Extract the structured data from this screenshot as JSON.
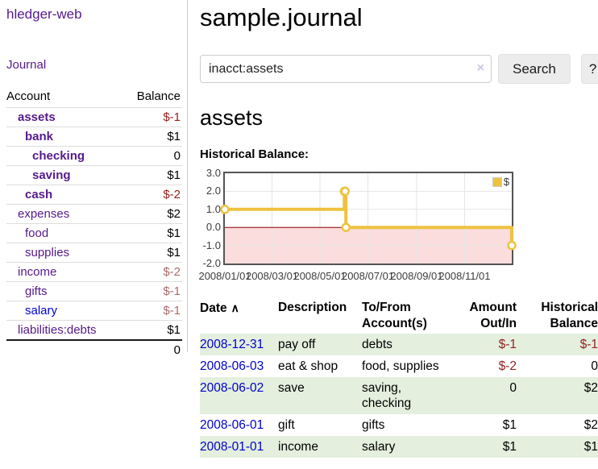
{
  "sidebar": {
    "title": "hledger-web",
    "nav": {
      "journal_label": "Journal"
    },
    "accounts_table": {
      "headers": [
        "Account",
        "Balance"
      ],
      "rows": [
        {
          "account": "assets",
          "balance": "$-1",
          "depth": 1,
          "bold": true,
          "link": "visited"
        },
        {
          "account": "bank",
          "balance": "$1",
          "depth": 2,
          "bold": true,
          "link": "visited"
        },
        {
          "account": "checking",
          "balance": "0",
          "depth": 3,
          "bold": true,
          "link": "visited"
        },
        {
          "account": "saving",
          "balance": "$1",
          "depth": 3,
          "bold": true,
          "link": "visited"
        },
        {
          "account": "cash",
          "balance": "$-2",
          "depth": 2,
          "bold": true,
          "link": "visited"
        },
        {
          "account": "expenses",
          "balance": "$2",
          "depth": 1,
          "bold": false,
          "link": "visited"
        },
        {
          "account": "food",
          "balance": "$1",
          "depth": 2,
          "bold": false,
          "link": "visited"
        },
        {
          "account": "supplies",
          "balance": "$1",
          "depth": 2,
          "bold": false,
          "link": "visited"
        },
        {
          "account": "income",
          "balance": "$-2",
          "depth": 1,
          "bold": false,
          "link": "visited"
        },
        {
          "account": "gifts",
          "balance": "$-1",
          "depth": 2,
          "bold": false,
          "link": "visited"
        },
        {
          "account": "salary",
          "balance": "$-1",
          "depth": 2,
          "bold": false,
          "link": "unvisited"
        },
        {
          "account": "liabilities:debts",
          "balance": "$1",
          "depth": 1,
          "bold": false,
          "link": "visited"
        }
      ],
      "total": "0"
    }
  },
  "header": {
    "title": "sample.journal"
  },
  "search": {
    "value": "inacct:assets",
    "clear_icon": "×",
    "button_label": "Search",
    "help_label": "?"
  },
  "account_page": {
    "title": "assets"
  },
  "chart_data": {
    "type": "line",
    "step": true,
    "title": "Historical Balance:",
    "xlabel": "",
    "ylabel": "",
    "series": [
      {
        "name": "$",
        "color": "#edc240",
        "points": [
          [
            "2008-01-01",
            1
          ],
          [
            "2008-06-01",
            2
          ],
          [
            "2008-06-02",
            2
          ],
          [
            "2008-06-03",
            0
          ],
          [
            "2008-12-31",
            -1
          ]
        ]
      }
    ],
    "x_ticks": [
      "2008/01/01",
      "2008/03/01",
      "2008/05/01",
      "2008/07/01",
      "2008/09/01",
      "2008/11/01"
    ],
    "y_ticks": [
      3.0,
      2.0,
      1.0,
      0.0,
      -1.0,
      -2.0
    ],
    "xlim": [
      "2008-01-01",
      "2008-12-31"
    ],
    "ylim": [
      -2,
      3
    ],
    "grid": true,
    "legend_position": "top-right",
    "negative_region_color": "#fbdddd",
    "zero_line_color": "#8b0000"
  },
  "register_table": {
    "sort_icon": "∧",
    "headers": [
      {
        "l1": "Date",
        "l2": ""
      },
      {
        "l1": "Description",
        "l2": ""
      },
      {
        "l1": "To/From",
        "l2": "Account(s)"
      },
      {
        "l1": "Amount",
        "l2": "Out/In"
      },
      {
        "l1": "Historical",
        "l2": "Balance"
      }
    ],
    "rows": [
      {
        "date": "2008-12-31",
        "description": "pay off",
        "accounts": "debts",
        "amount": "$-1",
        "balance": "$-1"
      },
      {
        "date": "2008-06-03",
        "description": "eat & shop",
        "accounts": "food, supplies",
        "amount": "$-2",
        "balance": "0"
      },
      {
        "date": "2008-06-02",
        "description": "save",
        "accounts": "saving, checking",
        "amount": "0",
        "balance": "$2"
      },
      {
        "date": "2008-06-01",
        "description": "gift",
        "accounts": "gifts",
        "amount": "$1",
        "balance": "$2"
      },
      {
        "date": "2008-01-01",
        "description": "income",
        "accounts": "salary",
        "amount": "$1",
        "balance": "$1"
      }
    ]
  },
  "colors": {
    "link_visited": "#551a8b",
    "link_unvisited": "#0000dd",
    "date_link": "#0000cc",
    "negative_strong": "#9e1a1a",
    "negative_muted": "#ab6a6a",
    "table_negative": "#942121",
    "row_stripe_green": "#e4efde",
    "chart_line": "#edc240",
    "chart_negative_fill": "#fbdddd",
    "chart_zero_line": "#8b0000",
    "chart_border": "#545454"
  }
}
